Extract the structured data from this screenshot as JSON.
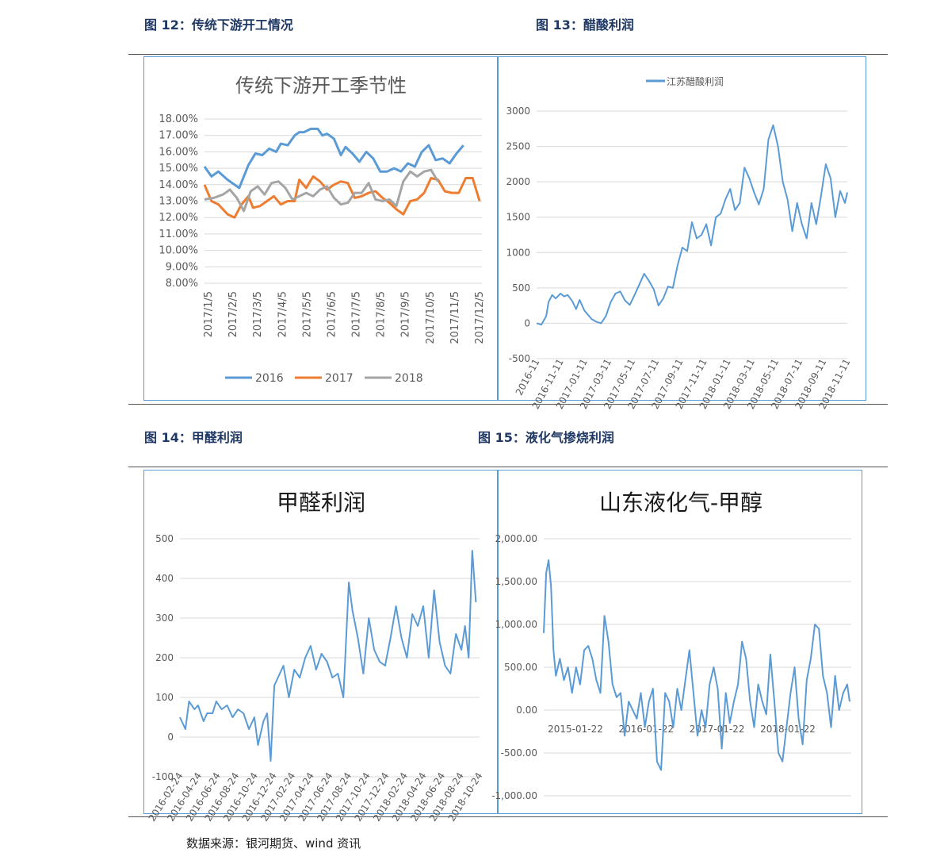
{
  "captions": {
    "fig12": "图 12：传统下游开工情况",
    "fig13": "图 13：醋酸利润",
    "fig14": "图 14：甲醛利润",
    "fig15": "图 15：液化气掺烧利润"
  },
  "source": "数据来源：银河期货、wind 资讯",
  "colors": {
    "blue": "#5b9bd5",
    "orange": "#ed7d31",
    "gray": "#a5a5a5",
    "grid": "#d9d9d9"
  },
  "chart_data": [
    {
      "id": "c12",
      "type": "line",
      "title": "传统下游开工季节性",
      "xticks": [
        "2017/1/5",
        "2017/2/5",
        "2017/3/5",
        "2017/4/5",
        "2017/5/5",
        "2017/6/5",
        "2017/7/5",
        "2017/8/5",
        "2017/9/5",
        "2017/10/5",
        "2017/11/5",
        "2017/12/5"
      ],
      "yticks": [
        "18.00%",
        "17.00%",
        "16.00%",
        "15.00%",
        "14.00%",
        "13.00%",
        "12.00%",
        "11.00%",
        "10.00%",
        "9.00%",
        "8.00%"
      ],
      "ylim": [
        8,
        18
      ],
      "xlim": [
        0,
        12
      ],
      "legend_position": "bottom",
      "series": [
        {
          "name": "2016",
          "color": "#5b9bd5",
          "x": [
            0,
            0.3,
            0.6,
            1,
            1.5,
            1.9,
            2.2,
            2.5,
            2.8,
            3.1,
            3.3,
            3.6,
            3.9,
            4.1,
            4.3,
            4.6,
            4.9,
            5.1,
            5.3,
            5.6,
            5.9,
            6.1,
            6.4,
            6.7,
            7.0,
            7.3,
            7.6,
            7.9,
            8.2,
            8.5,
            8.8,
            9.1,
            9.4,
            9.7,
            10.0,
            10.3,
            10.6,
            10.9,
            11.2
          ],
          "y": [
            15.1,
            14.5,
            14.8,
            14.3,
            13.8,
            15.2,
            15.9,
            15.8,
            16.2,
            16.0,
            16.5,
            16.4,
            17.0,
            17.2,
            17.2,
            17.4,
            17.4,
            17.0,
            17.1,
            16.8,
            15.8,
            16.3,
            15.9,
            15.4,
            16.0,
            15.6,
            14.8,
            14.8,
            15.0,
            14.8,
            15.3,
            15.1,
            16.0,
            16.4,
            15.5,
            15.6,
            15.3,
            15.9,
            16.4
          ]
        },
        {
          "name": "2017",
          "color": "#ed7d31",
          "x": [
            0,
            0.3,
            0.6,
            1,
            1.3,
            1.6,
            1.9,
            2.1,
            2.4,
            2.7,
            3.0,
            3.3,
            3.6,
            3.9,
            4.1,
            4.4,
            4.7,
            5.0,
            5.3,
            5.6,
            5.9,
            6.2,
            6.5,
            6.8,
            7.1,
            7.4,
            7.7,
            8.0,
            8.3,
            8.6,
            8.9,
            9.2,
            9.5,
            9.8,
            10.1,
            10.4,
            10.7,
            11.0,
            11.3,
            11.6,
            11.9
          ],
          "y": [
            14.0,
            13.0,
            12.8,
            12.2,
            12.0,
            12.8,
            13.3,
            12.6,
            12.7,
            13.0,
            13.3,
            12.8,
            13.0,
            13.0,
            14.3,
            13.8,
            14.5,
            14.2,
            13.7,
            14.0,
            14.2,
            14.1,
            13.2,
            13.3,
            13.5,
            13.6,
            13.2,
            12.9,
            12.5,
            12.2,
            13.0,
            13.1,
            13.5,
            14.4,
            14.3,
            13.6,
            13.5,
            13.5,
            14.4,
            14.4,
            13.0
          ]
        },
        {
          "name": "2018",
          "color": "#a5a5a5",
          "x": [
            0,
            0.4,
            0.8,
            1.1,
            1.4,
            1.7,
            2.0,
            2.3,
            2.6,
            2.9,
            3.2,
            3.5,
            3.8,
            4.1,
            4.4,
            4.7,
            5.0,
            5.3,
            5.6,
            5.9,
            6.2,
            6.5,
            6.8,
            7.1,
            7.4,
            7.7,
            8.0,
            8.3,
            8.6,
            8.9,
            9.2,
            9.5,
            9.8,
            10.1
          ],
          "y": [
            13.1,
            13.2,
            13.4,
            13.7,
            13.2,
            12.4,
            13.6,
            13.9,
            13.4,
            14.1,
            14.2,
            13.8,
            13.1,
            13.3,
            13.5,
            13.3,
            13.7,
            13.9,
            13.2,
            12.8,
            12.9,
            13.5,
            13.5,
            14.1,
            13.1,
            13.0,
            13.1,
            12.7,
            14.2,
            14.8,
            14.5,
            14.8,
            14.9,
            14.2
          ]
        }
      ]
    },
    {
      "id": "c13",
      "type": "line",
      "legend": "江苏醋酸利润",
      "legend_position": "top",
      "yticks": [
        "3000",
        "2500",
        "2000",
        "1500",
        "1000",
        "500",
        "0",
        "-500"
      ],
      "ylim": [
        -500,
        3000
      ],
      "xticks": [
        "2016-11",
        "2016-11-11",
        "2017-01-11",
        "2017-03-11",
        "2017-05-11",
        "2017-07-11",
        "2017-09-11",
        "2017-11-11",
        "2018-01-11",
        "2018-03-11",
        "2018-05-11",
        "2018-07-11",
        "2018-09-11",
        "2018-11-11"
      ],
      "xlim": [
        0,
        26
      ],
      "series": [
        {
          "name": "江苏醋酸利润",
          "color": "#5b9bd5",
          "x": [
            0,
            0.4,
            0.8,
            1,
            1.3,
            1.6,
            2,
            2.3,
            2.6,
            3,
            3.3,
            3.6,
            4,
            4.3,
            4.6,
            5,
            5.4,
            5.8,
            6.2,
            6.6,
            7,
            7.4,
            7.8,
            8.2,
            8.6,
            9,
            9.4,
            9.8,
            10.2,
            10.6,
            11,
            11.4,
            11.8,
            12.2,
            12.6,
            13,
            13.4,
            13.8,
            14.2,
            14.6,
            15,
            15.4,
            15.8,
            16.2,
            16.6,
            17,
            17.4,
            17.8,
            18.2,
            18.6,
            19,
            19.4,
            19.8,
            20.2,
            20.6,
            21,
            21.4,
            21.8,
            22.2,
            22.6,
            23,
            23.4,
            23.8,
            24.2,
            24.6,
            25,
            25.4,
            25.8,
            26
          ],
          "y": [
            0,
            -20,
            100,
            300,
            400,
            350,
            420,
            380,
            400,
            310,
            200,
            330,
            180,
            120,
            60,
            20,
            0,
            100,
            300,
            420,
            450,
            320,
            260,
            400,
            550,
            700,
            600,
            480,
            250,
            350,
            520,
            500,
            820,
            1070,
            1020,
            1430,
            1200,
            1250,
            1400,
            1100,
            1500,
            1550,
            1750,
            1900,
            1600,
            1700,
            2200,
            2050,
            1850,
            1680,
            1900,
            2600,
            2800,
            2500,
            2000,
            1750,
            1300,
            1700,
            1400,
            1200,
            1700,
            1400,
            1800,
            2250,
            2050,
            1500,
            1870,
            1700,
            1850
          ]
        }
      ]
    },
    {
      "id": "c14",
      "type": "line",
      "title": "甲醛利润",
      "yticks": [
        "500",
        "400",
        "300",
        "200",
        "100",
        "0",
        "-100"
      ],
      "ylim": [
        -100,
        500
      ],
      "xticks": [
        "2016-02-24",
        "2016-04-24",
        "2016-06-24",
        "2016-08-24",
        "2016-10-24",
        "2016-12-24",
        "2017-02-24",
        "2017-04-24",
        "2017-06-24",
        "2017-08-24",
        "2017-10-24",
        "2017-12-24",
        "2018-02-24",
        "2018-04-24",
        "2018-06-24",
        "2018-08-24",
        "2018-10-24"
      ],
      "xlim": [
        0,
        16.5
      ],
      "series": [
        {
          "name": "甲醛利润",
          "color": "#5b9bd5",
          "x": [
            0,
            0.3,
            0.5,
            0.8,
            1,
            1.3,
            1.5,
            1.8,
            2,
            2.3,
            2.6,
            2.9,
            3.2,
            3.5,
            3.8,
            4.1,
            4.3,
            4.6,
            4.8,
            5,
            5.2,
            5.4,
            5.7,
            6,
            6.3,
            6.6,
            6.9,
            7.2,
            7.5,
            7.8,
            8.1,
            8.4,
            8.7,
            9,
            9.3,
            9.5,
            9.8,
            10.1,
            10.4,
            10.7,
            11,
            11.3,
            11.6,
            11.9,
            12.2,
            12.5,
            12.8,
            13.1,
            13.4,
            13.7,
            14,
            14.3,
            14.6,
            14.9,
            15.2,
            15.5,
            15.7,
            15.9,
            16.1,
            16.3
          ],
          "y": [
            50,
            20,
            90,
            70,
            80,
            40,
            60,
            60,
            90,
            70,
            80,
            50,
            70,
            60,
            20,
            50,
            -20,
            40,
            60,
            -60,
            130,
            150,
            180,
            100,
            170,
            150,
            200,
            230,
            170,
            210,
            190,
            150,
            160,
            100,
            390,
            320,
            250,
            160,
            300,
            220,
            190,
            180,
            250,
            330,
            250,
            200,
            310,
            280,
            330,
            200,
            370,
            240,
            180,
            160,
            260,
            220,
            280,
            200,
            470,
            340
          ]
        }
      ]
    },
    {
      "id": "c15",
      "type": "line",
      "title": "山东液化气-甲醇",
      "yticks": [
        "2,000.00",
        "1,500.00",
        "1,000.00",
        "500.00",
        "0.00",
        "-500.00",
        "-1,000.00"
      ],
      "ylim": [
        -1000,
        2000
      ],
      "xticks": [
        "2015-01-22",
        "2016-01-22",
        "2017-01-22",
        "2018-01-22"
      ],
      "xlim": [
        0,
        3.8
      ],
      "series": [
        {
          "name": "山东液化气-甲醇",
          "color": "#5b9bd5",
          "x": [
            0,
            0.03,
            0.06,
            0.09,
            0.12,
            0.15,
            0.2,
            0.25,
            0.3,
            0.35,
            0.4,
            0.45,
            0.5,
            0.55,
            0.6,
            0.65,
            0.7,
            0.75,
            0.8,
            0.85,
            0.9,
            0.95,
            1.0,
            1.05,
            1.1,
            1.15,
            1.2,
            1.25,
            1.3,
            1.35,
            1.4,
            1.45,
            1.5,
            1.55,
            1.6,
            1.65,
            1.7,
            1.75,
            1.8,
            1.85,
            1.9,
            1.95,
            2.0,
            2.05,
            2.1,
            2.15,
            2.2,
            2.25,
            2.3,
            2.35,
            2.4,
            2.45,
            2.5,
            2.55,
            2.6,
            2.65,
            2.7,
            2.75,
            2.8,
            2.85,
            2.9,
            2.95,
            3.0,
            3.05,
            3.1,
            3.15,
            3.2,
            3.25,
            3.3,
            3.35,
            3.4,
            3.45,
            3.5,
            3.55,
            3.6,
            3.65,
            3.7,
            3.75,
            3.78
          ],
          "y": [
            900,
            1600,
            1750,
            1450,
            700,
            400,
            600,
            350,
            500,
            200,
            500,
            300,
            700,
            750,
            600,
            350,
            200,
            1100,
            800,
            300,
            150,
            200,
            -300,
            100,
            0,
            -100,
            200,
            -200,
            100,
            250,
            -600,
            -700,
            200,
            100,
            -200,
            250,
            0,
            350,
            700,
            200,
            -300,
            0,
            -200,
            300,
            500,
            250,
            -450,
            200,
            -150,
            100,
            300,
            800,
            600,
            100,
            -200,
            300,
            100,
            -50,
            650,
            100,
            -500,
            -600,
            -200,
            200,
            500,
            -100,
            -400,
            350,
            600,
            1000,
            950,
            400,
            200,
            -200,
            400,
            0,
            200,
            300,
            100
          ]
        }
      ]
    }
  ]
}
